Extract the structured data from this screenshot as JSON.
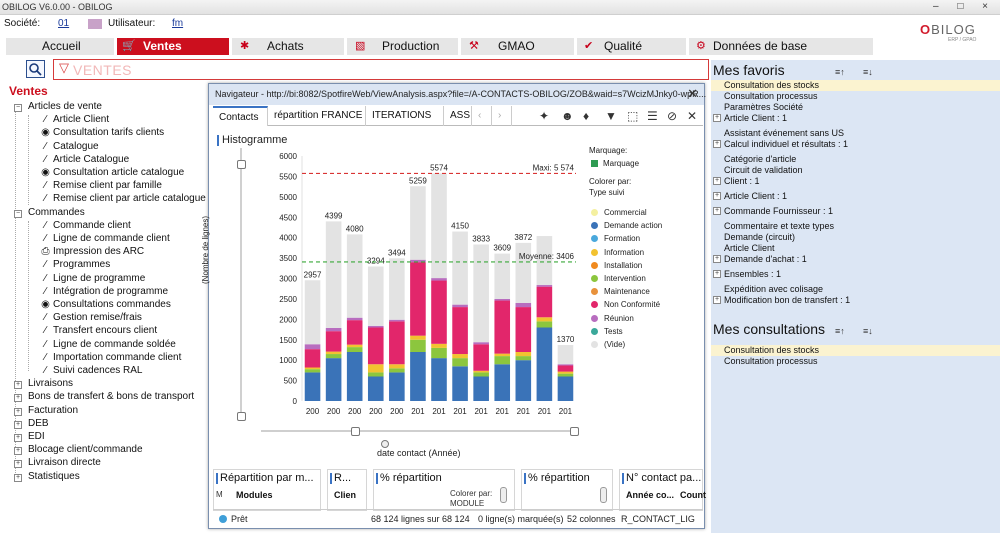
{
  "window": {
    "title": "OBILOG V6.0.00 - OBILOG",
    "controls": "–  □  ×"
  },
  "info": {
    "societe_label": "Société:",
    "societe_value": "01",
    "utilisateur_label": "Utilisateur:",
    "utilisateur_value": "fm"
  },
  "logo": {
    "text_a": "O",
    "text_b": "BILOG",
    "sub": "ERP / GPAO"
  },
  "nav": [
    {
      "label": "Accueil",
      "icon": ""
    },
    {
      "label": "Ventes",
      "icon": "cart-icon"
    },
    {
      "label": "Achats",
      "icon": "truck-icon"
    },
    {
      "label": "Production",
      "icon": "factory-icon"
    },
    {
      "label": "GMAO",
      "icon": "wrench-icon"
    },
    {
      "label": "Qualité",
      "icon": "check-icon"
    },
    {
      "label": "Données de base",
      "icon": "gear-icon"
    }
  ],
  "search": {
    "placeholder": "VENTES"
  },
  "tree": {
    "root": "Ventes",
    "articles": "Articles de vente",
    "articles_items": [
      "Article Client",
      "Consultation tarifs clients",
      "Catalogue",
      "Article Catalogue",
      "Consultation article catalogue",
      "Remise client par famille",
      "Remise client par article catalogue"
    ],
    "commandes": "Commandes",
    "commandes_items": [
      "Commande client",
      "Ligne de commande client",
      "Impression des ARC",
      "Programmes",
      "Ligne de programme",
      "Intégration de programme",
      "Consultations commandes",
      "Gestion remise/frais",
      "Transfert encours client",
      "Ligne de commande soldée",
      "Importation commande client",
      "Suivi cadences RAL"
    ],
    "collapsed": [
      "Livraisons",
      "Bons de transfert & bons de transport",
      "Facturation",
      "DEB",
      "EDI",
      "Blocage client/commande",
      "Livraison directe",
      "Statistiques"
    ]
  },
  "navigator": {
    "title": "Navigateur - http://bi:8082/SpotfireWeb/ViewAnalysis.aspx?file=/A-CONTACTS-OBILOG/ZOB&waid=s7WcizMJnky0-wpR...",
    "tabs": [
      "Contacts",
      "répartition FRANCE",
      "ITERATIONS",
      "ASS"
    ],
    "histogram_title": "Histogramme",
    "y_axis_label": "(Nombre de lignes)",
    "x_axis_label": "date contact (Année)",
    "legend": {
      "marquage_title": "Marquage:",
      "marquage_item": "Marquage",
      "colorer_title": "Colorer par:",
      "colorer_value": "Type suivi",
      "items": [
        {
          "label": "Commercial",
          "color": "#f4f0a0"
        },
        {
          "label": "Demande action",
          "color": "#3a73b8"
        },
        {
          "label": "Formation",
          "color": "#4aa8dc"
        },
        {
          "label": "Information",
          "color": "#f2c230"
        },
        {
          "label": "Installation",
          "color": "#f08a1e"
        },
        {
          "label": "Intervention",
          "color": "#8cc63e"
        },
        {
          "label": "Maintenance",
          "color": "#e8923c"
        },
        {
          "label": "Non Conformité",
          "color": "#e2266b"
        },
        {
          "label": "Réunion",
          "color": "#b86dbf"
        },
        {
          "label": "Tests",
          "color": "#3aa89a"
        },
        {
          "label": "(Vide)",
          "color": "#e3e3e3"
        }
      ]
    },
    "subpanels": [
      {
        "title": "Répartition par m...",
        "header": "Modules"
      },
      {
        "title": "R...",
        "header": "Clien"
      },
      {
        "title": "% répartition",
        "colorer": "Colorer par:",
        "colorer_sub": "MODULE"
      },
      {
        "title": "% répartition"
      },
      {
        "title": "N° contact pa...",
        "header": "Année co...",
        "header2": "Count"
      }
    ],
    "status": {
      "state": "Prêt",
      "rows": "68 124 lignes sur 68 124",
      "marked": "0 ligne(s) marquée(s)",
      "columns": "52 colonnes",
      "table": "R_CONTACT_LIG"
    }
  },
  "chart_data": {
    "type": "bar",
    "stacked": true,
    "title": "Histogramme",
    "xlabel": "date contact (Année)",
    "ylabel": "(Nombre de lignes)",
    "ylim": [
      0,
      6000
    ],
    "yticks": [
      0,
      500,
      1000,
      1500,
      2000,
      2500,
      3000,
      3500,
      4000,
      4500,
      5000,
      5500,
      6000
    ],
    "tick_labels": [
      "200",
      "200",
      "200",
      "200",
      "200",
      "201",
      "201",
      "201",
      "201",
      "201",
      "201",
      "201",
      "201"
    ],
    "totals": [
      2957,
      4399,
      4080,
      3294,
      3494,
      5259,
      5574,
      4150,
      3833,
      3609,
      3872,
      null,
      1370
    ],
    "total_labels": [
      "2957",
      "4399",
      "4080",
      "3294",
      "3494",
      "5259",
      "5574",
      "4150",
      "3833",
      "3609",
      "3872",
      "",
      "1370"
    ],
    "series": [
      {
        "name": "Demande action",
        "values": [
          700,
          1050,
          1200,
          600,
          700,
          1200,
          1050,
          850,
          600,
          900,
          1000,
          1800,
          600
        ]
      },
      {
        "name": "Intervention",
        "values": [
          80,
          100,
          120,
          100,
          100,
          300,
          250,
          200,
          100,
          200,
          100,
          150,
          70
        ]
      },
      {
        "name": "Information",
        "values": [
          40,
          60,
          60,
          200,
          100,
          100,
          100,
          100,
          40,
          60,
          100,
          100,
          50
        ]
      },
      {
        "name": "Non Conformité",
        "values": [
          450,
          500,
          600,
          900,
          1050,
          1800,
          1550,
          1150,
          650,
          1300,
          1100,
          750,
          150
        ]
      },
      {
        "name": "Réunion",
        "values": [
          120,
          80,
          60,
          40,
          40,
          60,
          60,
          60,
          50,
          40,
          100,
          40,
          30
        ]
      },
      {
        "name": "(Vide)",
        "values": [
          1567,
          2609,
          2040,
          1454,
          1504,
          1799,
          2564,
          1790,
          2393,
          1109,
          1472,
          1200,
          470
        ]
      }
    ],
    "reference_lines": [
      {
        "label": "Maxi: 5 574",
        "value": 5574,
        "color": "#d93434"
      },
      {
        "label": "Moyenne: 3406",
        "value": 3406,
        "color": "#3aa83a"
      }
    ]
  },
  "right": {
    "favoris_title": "Mes favoris",
    "sort_asc": "≡↑",
    "sort_desc": "≡↓",
    "favoris": [
      {
        "label": "Consultation des stocks",
        "box": false,
        "hl": true
      },
      {
        "label": "Consultation processus",
        "box": false,
        "hl": false
      },
      {
        "label": "Paramètres Société",
        "box": false,
        "hl": false
      },
      {
        "label": "Article Client : 1",
        "box": true,
        "hl": false
      },
      {
        "label": "Assistant événement sans US",
        "box": false,
        "hl": false
      },
      {
        "label": "Calcul individuel et résultats : 1",
        "box": true,
        "hl": false
      },
      {
        "label": "Catégorie d'article",
        "box": false,
        "hl": false
      },
      {
        "label": "Circuit de validation",
        "box": false,
        "hl": false
      },
      {
        "label": "Client : 1",
        "box": true,
        "hl": false
      },
      {
        "label": "Article Client : 1",
        "box": true,
        "hl": false
      },
      {
        "label": "Commande Fournisseur : 1",
        "box": true,
        "hl": false
      },
      {
        "label": "Commentaire et texte types",
        "box": false,
        "hl": false
      },
      {
        "label": "Demande (circuit)",
        "box": false,
        "hl": false
      },
      {
        "label": "Article Client",
        "box": false,
        "hl": false
      },
      {
        "label": "Demande d'achat : 1",
        "box": true,
        "hl": false
      },
      {
        "label": "Ensembles : 1",
        "box": true,
        "hl": false
      },
      {
        "label": "Expédition avec colisage",
        "box": false,
        "hl": false
      },
      {
        "label": "Modification bon de transfert : 1",
        "box": true,
        "hl": false
      }
    ],
    "consultations_title": "Mes consultations",
    "consultations": [
      {
        "label": "Consultation des stocks",
        "hl": true
      },
      {
        "label": "Consultation processus",
        "hl": false
      }
    ]
  }
}
